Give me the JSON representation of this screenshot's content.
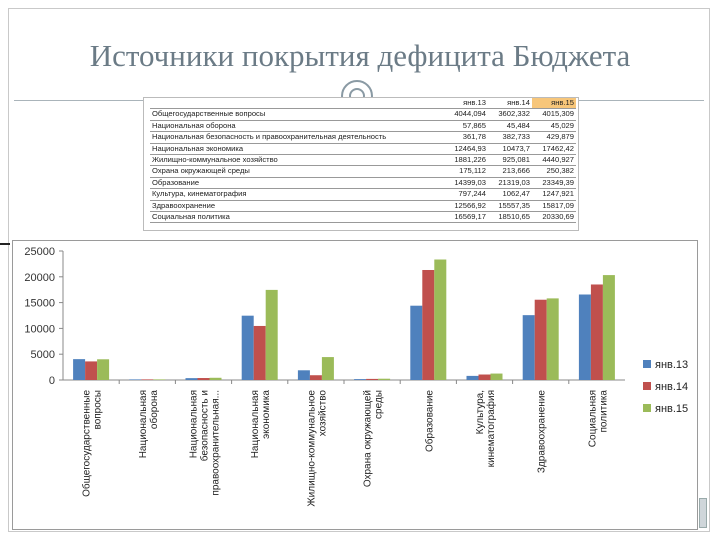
{
  "title": "Источники покрытия дефицита Бюджета",
  "table": {
    "headers": [
      "",
      "янв.13",
      "янв.14",
      "янв.15"
    ],
    "rows": [
      [
        "Общегосударственные вопросы",
        "4044,094",
        "3602,332",
        "4015,309"
      ],
      [
        "Национальная оборона",
        "57,865",
        "45,484",
        "45,029"
      ],
      [
        "Национальная безопасность и правоохранительная деятельность",
        "361,78",
        "382,733",
        "429,879"
      ],
      [
        "Национальная экономика",
        "12464,93",
        "10473,7",
        "17462,42"
      ],
      [
        "Жилищно-коммунальное хозяйство",
        "1881,226",
        "925,081",
        "4440,927"
      ],
      [
        "Охрана окружающей среды",
        "175,112",
        "213,666",
        "250,382"
      ],
      [
        "Образование",
        "14399,03",
        "21319,03",
        "23349,39"
      ],
      [
        "Культура, кинематография",
        "797,244",
        "1062,47",
        "1247,921"
      ],
      [
        "Здравоохранение",
        "12566,92",
        "15557,35",
        "15817,09"
      ],
      [
        "Социальная политика",
        "16569,17",
        "18510,65",
        "20330,69"
      ]
    ]
  },
  "colors": {
    "series": [
      "#4f81bd",
      "#c0504d",
      "#9bbb59"
    ],
    "title": "#6b7b86",
    "highlight": "#f7c67a"
  },
  "chart_data": {
    "type": "bar",
    "categories": [
      "Общегосударственные вопросы",
      "Национальная оборона",
      "Национальная безопасность и правоохранительная...",
      "Национальная экономика",
      "Жилищно-коммунальное хозяйство",
      "Охрана окружающей среды",
      "Образование",
      "Культура, кинематография",
      "Здравоохранение",
      "Социальная политика"
    ],
    "series": [
      {
        "name": "янв.13",
        "values": [
          4044.094,
          57.865,
          361.78,
          12464.93,
          1881.226,
          175.112,
          14399.03,
          797.244,
          12566.92,
          16569.17
        ]
      },
      {
        "name": "янв.14",
        "values": [
          3602.332,
          45.484,
          382.733,
          10473.7,
          925.081,
          213.666,
          21319.03,
          1062.47,
          15557.35,
          18510.65
        ]
      },
      {
        "name": "янв.15",
        "values": [
          4015.309,
          45.029,
          429.879,
          17462.42,
          4440.927,
          250.382,
          23349.39,
          1247.921,
          15817.09,
          20330.69
        ]
      }
    ],
    "yticks": [
      "0",
      "5000",
      "10000",
      "15000",
      "20000",
      "25000"
    ],
    "ylim": [
      0,
      25000
    ],
    "grid": false,
    "legend": "right"
  }
}
